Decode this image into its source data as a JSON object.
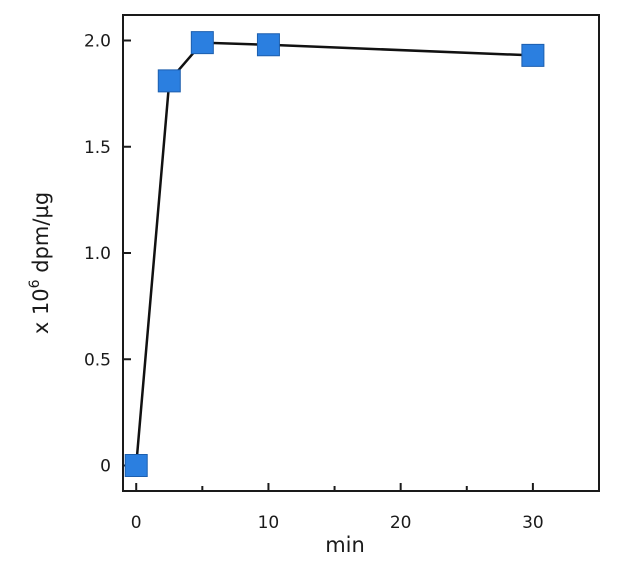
{
  "chart_data": {
    "type": "line",
    "xlabel": "min",
    "ylabel_prefix": "x 10",
    "ylabel_superscript": "6",
    "ylabel_suffix": " dpm/µg",
    "x_ticks": [
      0,
      10,
      20,
      30
    ],
    "x_tick_labels": [
      "0",
      "10",
      "20",
      "30"
    ],
    "x_minor_ticks": [
      5,
      15,
      25
    ],
    "y_ticks": [
      0,
      0.5,
      1.0,
      1.5,
      2.0
    ],
    "y_tick_labels": [
      "0",
      "0.5",
      "1.0",
      "1.5",
      "2.0"
    ],
    "xlim": [
      -1,
      35
    ],
    "ylim": [
      -0.12,
      2.12
    ],
    "grid": false,
    "series": [
      {
        "x": [
          0,
          2.5,
          5,
          10,
          30
        ],
        "y": [
          0,
          1.81,
          1.99,
          1.98,
          1.93
        ]
      }
    ],
    "colors": {
      "marker": "#2b7fe0",
      "line": "#111111",
      "axis": "#1a1a1a"
    }
  }
}
